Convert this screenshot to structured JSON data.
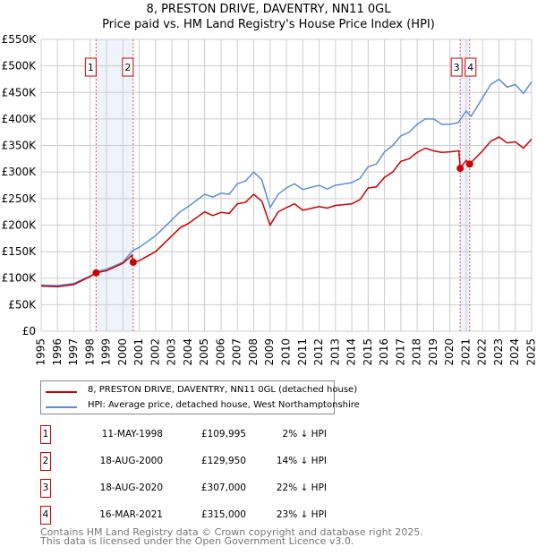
{
  "chart_data": {
    "type": "line",
    "title": "8, PRESTON DRIVE, DAVENTRY, NN11 0GL",
    "subtitle": "Price paid vs. HM Land Registry's House Price Index (HPI)",
    "xlim": [
      1995,
      2025
    ],
    "ylim": [
      0,
      550000
    ],
    "yticks": [
      0,
      50000,
      100000,
      150000,
      200000,
      250000,
      300000,
      350000,
      400000,
      450000,
      500000,
      550000
    ],
    "ytick_labels": [
      "£0",
      "£50K",
      "£100K",
      "£150K",
      "£200K",
      "£250K",
      "£300K",
      "£350K",
      "£400K",
      "£450K",
      "£500K",
      "£550K"
    ],
    "xtick_labels": [
      "1995",
      "1996",
      "1997",
      "1998",
      "1999",
      "2000",
      "2001",
      "2002",
      "2003",
      "2004",
      "2005",
      "2006",
      "2007",
      "2008",
      "2009",
      "2010",
      "2011",
      "2012",
      "2013",
      "2014",
      "2015",
      "2016",
      "2017",
      "2018",
      "2019",
      "2020",
      "2021",
      "2022",
      "2023",
      "2024",
      "2025"
    ],
    "grid": true,
    "series": [
      {
        "name": "8, PRESTON DRIVE, DAVENTRY, NN11 0GL (detached house)",
        "color": "#cc0000",
        "x": [
          1995,
          1996,
          1997,
          1998,
          1998.36,
          1999,
          2000,
          2000.55,
          2000.63,
          2001,
          2002,
          2003,
          2003.5,
          2004,
          2005,
          2005.5,
          2006,
          2006.5,
          2007,
          2007.5,
          2008,
          2008.5,
          2009,
          2009.5,
          2010,
          2010.5,
          2011,
          2012,
          2012.5,
          2013,
          2014,
          2014.5,
          2015,
          2015.5,
          2016,
          2016.5,
          2017,
          2017.5,
          2018,
          2018.5,
          2019,
          2019.5,
          2020,
          2020.55,
          2020.63,
          2021,
          2021.21,
          2022,
          2022.5,
          2023,
          2023.5,
          2024,
          2024.5,
          2025
        ],
        "y": [
          85000,
          84000,
          88000,
          103000,
          110000,
          114000,
          128000,
          143000,
          130000,
          133000,
          150000,
          180000,
          195000,
          203000,
          225000,
          218000,
          224000,
          222000,
          240000,
          243000,
          258000,
          245000,
          200000,
          225000,
          233000,
          240000,
          228000,
          235000,
          232000,
          237000,
          240000,
          248000,
          270000,
          272000,
          290000,
          300000,
          320000,
          325000,
          337000,
          345000,
          340000,
          337000,
          338000,
          340000,
          307000,
          322000,
          315000,
          340000,
          358000,
          366000,
          355000,
          357000,
          345000,
          362000
        ]
      },
      {
        "name": "HPI: Average price, detached house, West Northamptonshire",
        "color": "#5b8fd4",
        "x": [
          1995,
          1996,
          1997,
          1998,
          1998.5,
          1999,
          2000,
          2000.6,
          2001,
          2002,
          2003,
          2003.5,
          2004,
          2005,
          2005.5,
          2006,
          2006.5,
          2007,
          2007.5,
          2008,
          2008.5,
          2009,
          2009.5,
          2010,
          2010.5,
          2011,
          2012,
          2012.5,
          2013,
          2014,
          2014.5,
          2015,
          2015.5,
          2016,
          2016.5,
          2017,
          2017.5,
          2018,
          2018.5,
          2019,
          2019.5,
          2020,
          2020.5,
          2021,
          2021.3,
          2022,
          2022.5,
          2023,
          2023.5,
          2024,
          2024.5,
          2025
        ],
        "y": [
          87000,
          86000,
          90000,
          104000,
          113000,
          117000,
          130000,
          152000,
          158000,
          180000,
          210000,
          225000,
          235000,
          258000,
          253000,
          260000,
          258000,
          278000,
          283000,
          300000,
          285000,
          233000,
          258000,
          270000,
          278000,
          267000,
          275000,
          268000,
          275000,
          280000,
          288000,
          310000,
          315000,
          338000,
          350000,
          368000,
          375000,
          390000,
          400000,
          400000,
          390000,
          390000,
          393000,
          415000,
          405000,
          440000,
          465000,
          475000,
          460000,
          465000,
          448000,
          470000
        ]
      }
    ],
    "shaded_ranges": [
      [
        1998.36,
        2000.63
      ],
      [
        2020.63,
        2021.21
      ]
    ],
    "legend_placement": "bottom",
    "sales": [
      {
        "n": "1",
        "x": 1998.36,
        "date": "11-MAY-1998",
        "price": "£109,995",
        "value": 109995,
        "hpi": "2% ↓ HPI"
      },
      {
        "n": "2",
        "x": 2000.63,
        "date": "18-AUG-2000",
        "price": "£129,950",
        "value": 129950,
        "hpi": "14% ↓ HPI"
      },
      {
        "n": "3",
        "x": 2020.63,
        "date": "18-AUG-2020",
        "price": "£307,000",
        "value": 307000,
        "hpi": "22% ↓ HPI"
      },
      {
        "n": "4",
        "x": 2021.21,
        "date": "16-MAR-2021",
        "price": "£315,000",
        "value": 315000,
        "hpi": "23% ↓ HPI"
      }
    ]
  },
  "footer": {
    "line1": "Contains HM Land Registry data © Crown copyright and database right 2025.",
    "line2": "This data is licensed under the Open Government Licence v3.0."
  }
}
